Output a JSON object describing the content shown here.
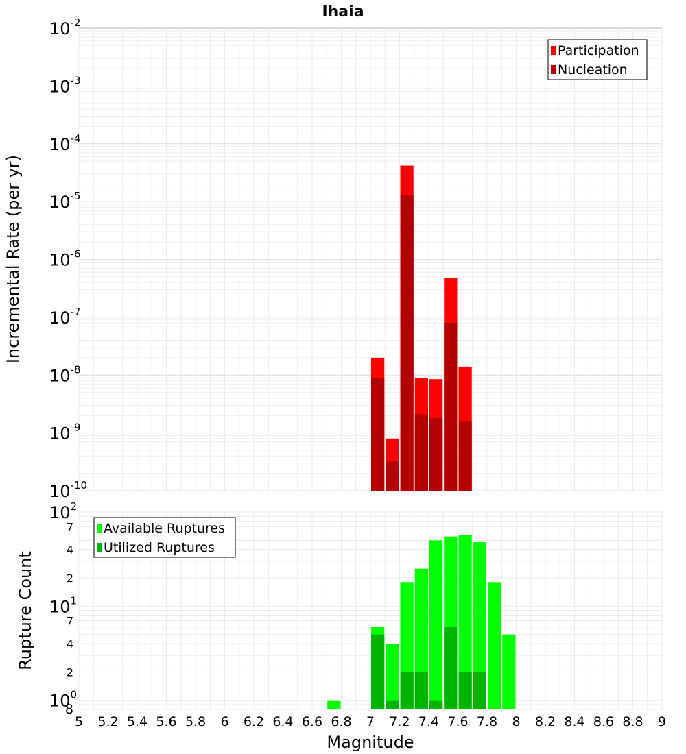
{
  "chart_data": [
    {
      "type": "bar",
      "title": "Ihaia",
      "xlabel": "",
      "ylabel": "Incremental Rate (per yr)",
      "yscale": "log",
      "ylim": [
        1e-10,
        0.01
      ],
      "xlim": [
        5,
        9
      ],
      "bar_width": 0.1,
      "y_tick_labels": [
        {
          "base": "10",
          "exp": "-10"
        },
        {
          "base": "10",
          "exp": "-9"
        },
        {
          "base": "10",
          "exp": "-8"
        },
        {
          "base": "10",
          "exp": "-7"
        },
        {
          "base": "10",
          "exp": "-6"
        },
        {
          "base": "10",
          "exp": "-5"
        },
        {
          "base": "10",
          "exp": "-4"
        },
        {
          "base": "10",
          "exp": "-3"
        },
        {
          "base": "10",
          "exp": "-2"
        }
      ],
      "legend_position": "top-right",
      "series": [
        {
          "name": "Participation",
          "color": "#ff0000",
          "x": [
            7.05,
            7.15,
            7.25,
            7.35,
            7.45,
            7.55,
            7.65
          ],
          "values": [
            2e-08,
            8e-10,
            4.2e-05,
            9e-09,
            8.5e-09,
            4.8e-07,
            1.4e-08
          ]
        },
        {
          "name": "Nucleation",
          "color": "#b30000",
          "x": [
            7.05,
            7.15,
            7.25,
            7.35,
            7.45,
            7.55,
            7.65
          ],
          "values": [
            9e-09,
            3.2e-10,
            1.3e-05,
            2.1e-09,
            1.8e-09,
            8e-08,
            1.6e-09
          ]
        }
      ]
    },
    {
      "type": "bar",
      "xlabel": "Magnitude",
      "ylabel": "Rupture Count",
      "yscale": "log",
      "ylim": [
        0.8,
        100
      ],
      "xlim": [
        5,
        9
      ],
      "bar_width": 0.1,
      "x_ticks": [
        "5",
        "5.2",
        "5.4",
        "5.6",
        "5.8",
        "6",
        "6.2",
        "6.4",
        "6.6",
        "6.8",
        "7",
        "7.2",
        "7.4",
        "7.6",
        "7.8",
        "8",
        "8.2",
        "8.4",
        "8.6",
        "8.8",
        "9"
      ],
      "y_tick_labels": [
        {
          "base": "10",
          "exp": "2"
        },
        {
          "base": "10",
          "exp": "1"
        },
        {
          "base": "10",
          "exp": "0"
        },
        {
          "text": "7"
        },
        {
          "text": "4"
        },
        {
          "text": "2"
        },
        {
          "text": "7"
        },
        {
          "text": "4"
        },
        {
          "text": "2"
        },
        {
          "text": "8"
        }
      ],
      "legend_position": "top-left",
      "series": [
        {
          "name": "Available Ruptures",
          "color": "#00ff00",
          "x": [
            6.75,
            7.05,
            7.15,
            7.25,
            7.35,
            7.45,
            7.55,
            7.65,
            7.75,
            7.85,
            7.95
          ],
          "values": [
            1,
            6,
            4,
            18,
            25,
            50,
            55,
            57,
            48,
            18,
            5
          ]
        },
        {
          "name": "Utilized Ruptures",
          "color": "#00b300",
          "x": [
            7.05,
            7.15,
            7.25,
            7.35,
            7.45,
            7.55,
            7.65,
            7.75
          ],
          "values": [
            5,
            1,
            2,
            2,
            1,
            6,
            2,
            2
          ]
        }
      ]
    }
  ]
}
